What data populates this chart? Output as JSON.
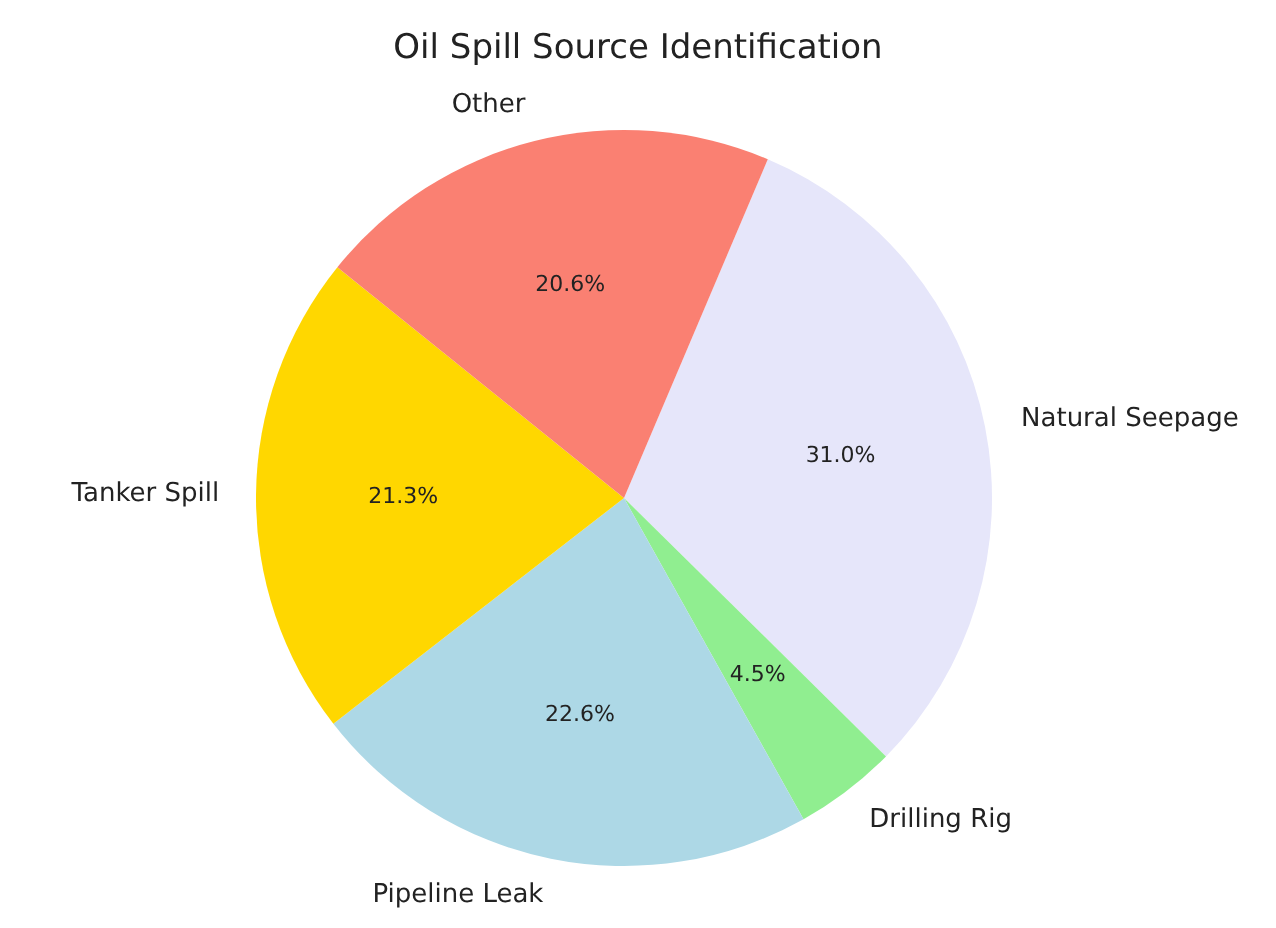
{
  "chart_data": {
    "type": "pie",
    "title": "Oil Spill Source Identification",
    "categories": [
      "Natural Seepage",
      "Drilling Rig",
      "Pipeline Leak",
      "Tanker Spill",
      "Other"
    ],
    "values": [
      31.0,
      4.5,
      22.6,
      21.3,
      20.6
    ],
    "value_labels": [
      "31.0%",
      "4.5%",
      "22.6%",
      "21.3%",
      "20.6%"
    ],
    "colors": [
      "#e6e6fa",
      "#90ee90",
      "#add8e6",
      "#ffd700",
      "#fa8072"
    ],
    "legend": false
  }
}
